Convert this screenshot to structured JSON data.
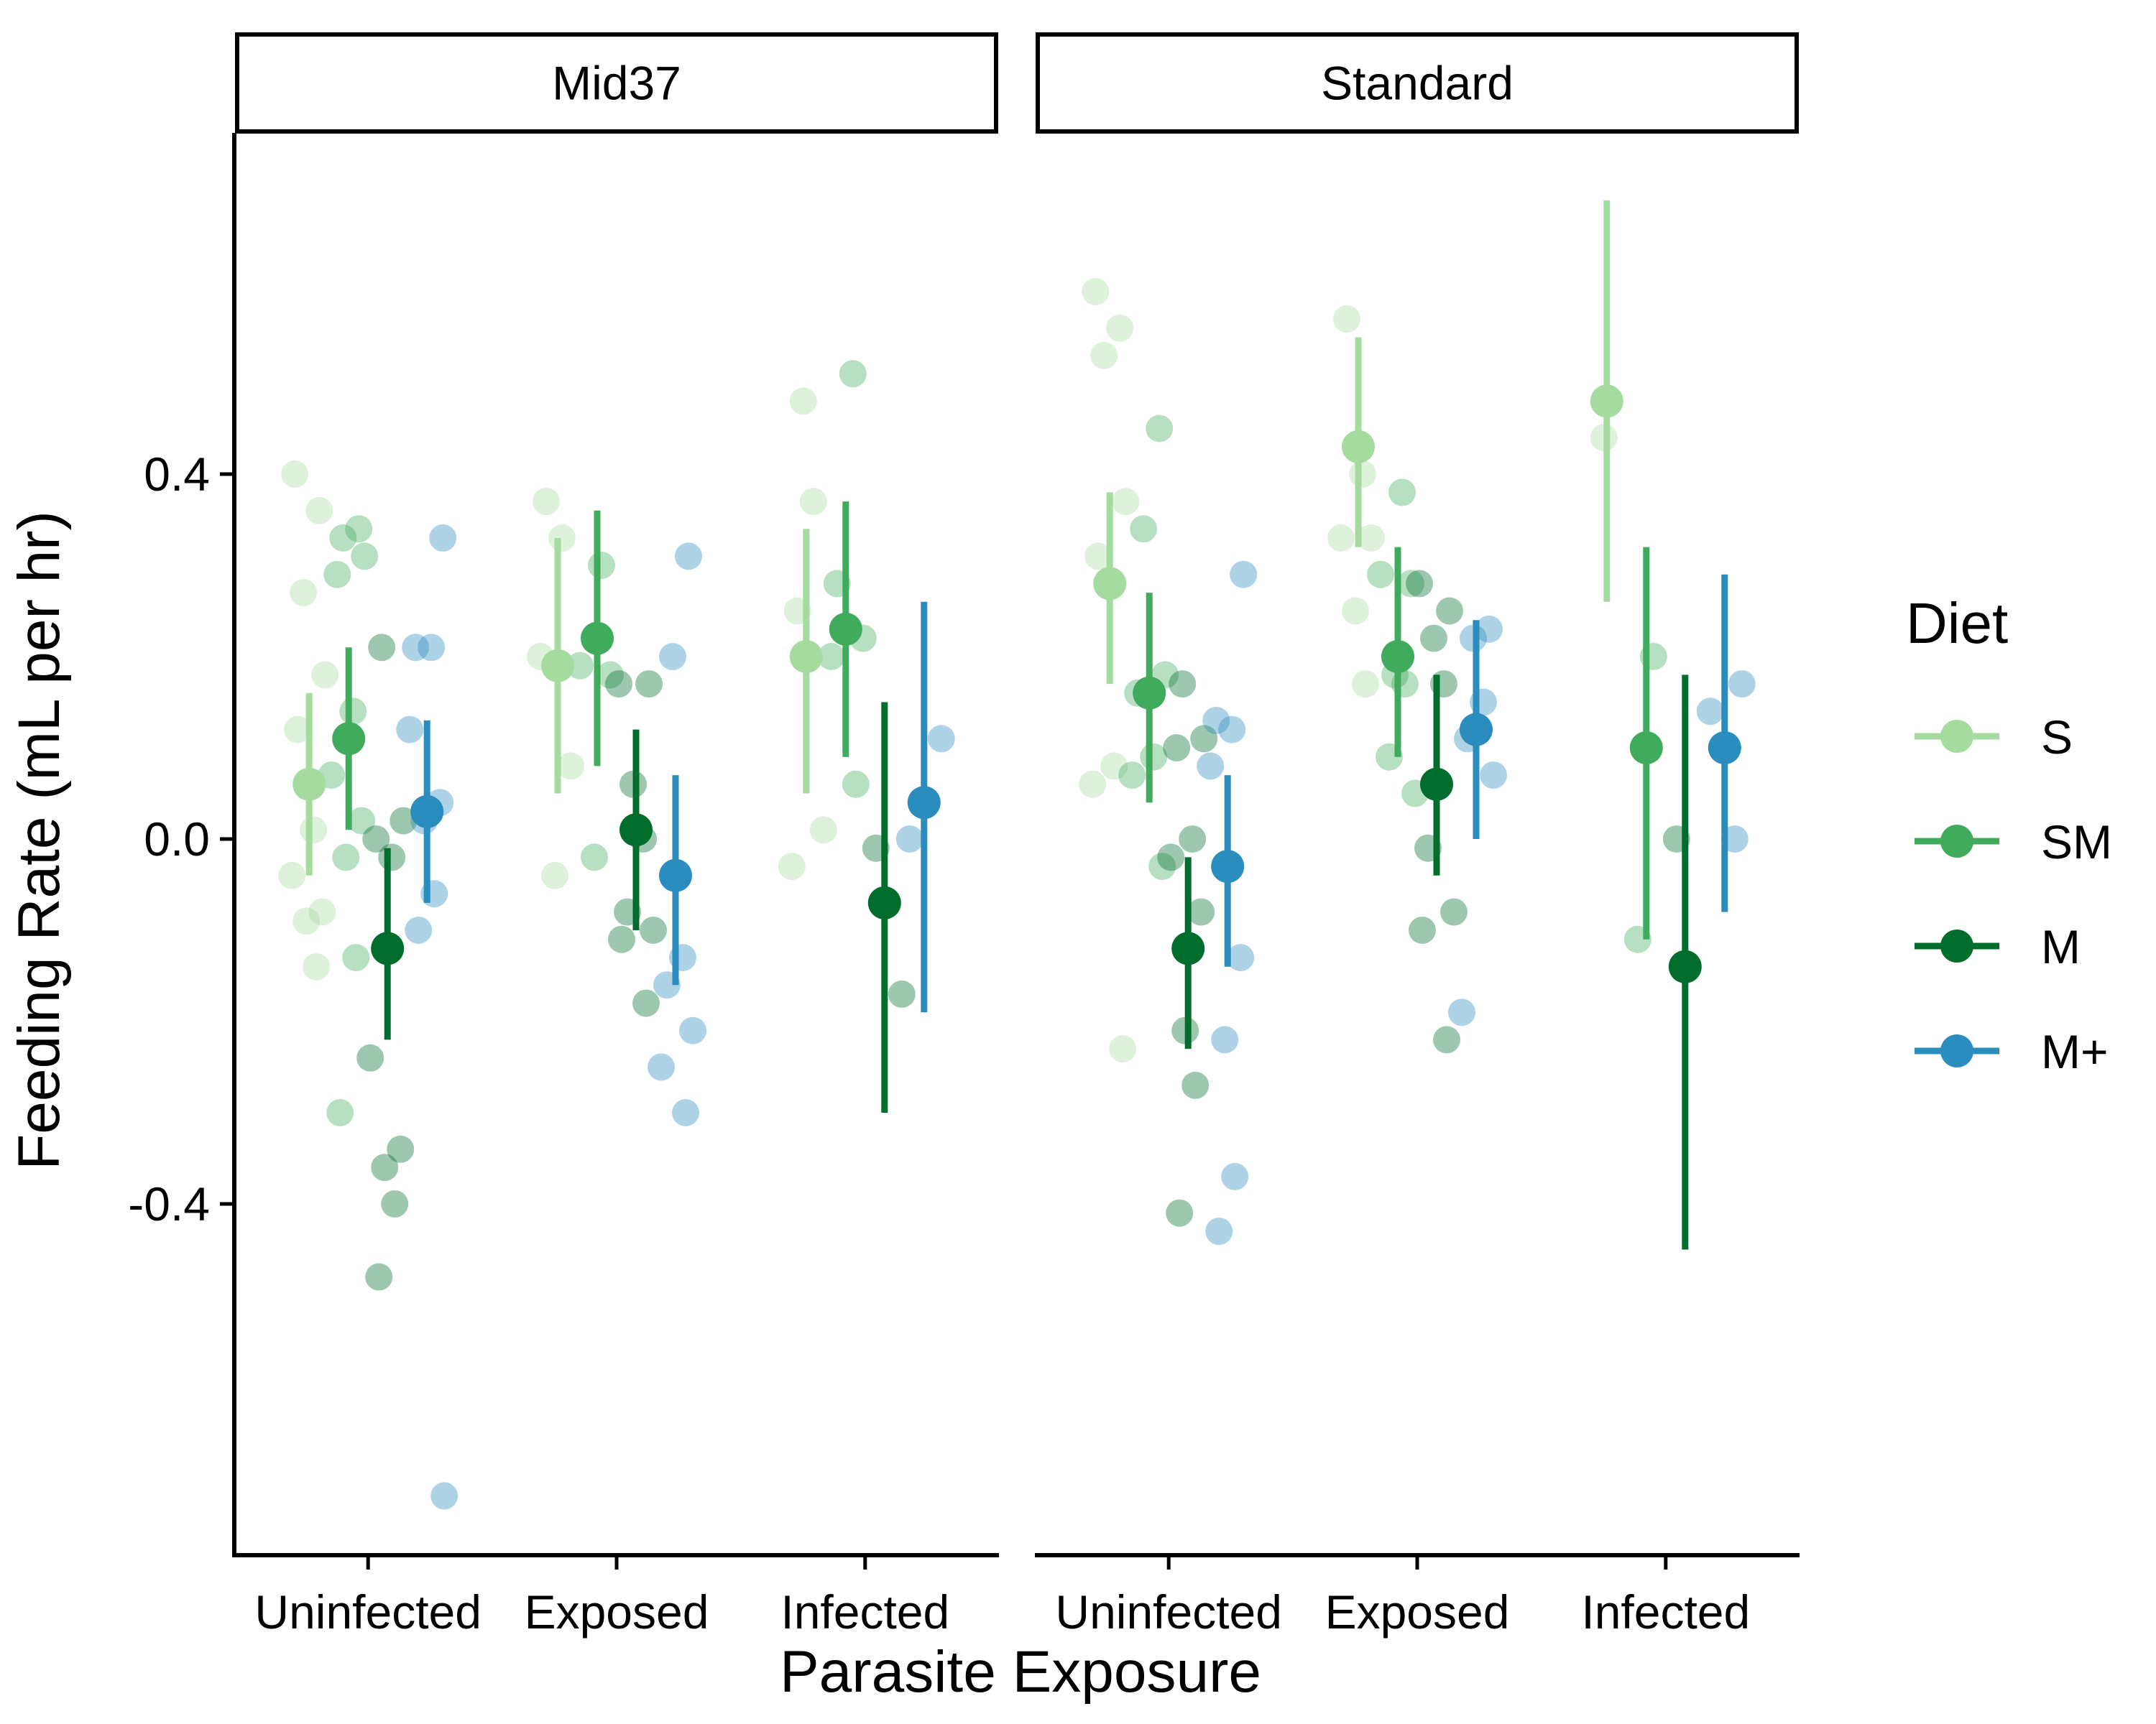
{
  "chart_data": {
    "type": "scatter",
    "xlabel": "Parasite Exposure",
    "ylabel": "Feeding Rate (mL per hr)",
    "ylim": [
      -0.78,
      0.8
    ],
    "yticks": [
      "0.4",
      "0.0",
      "-0.4"
    ],
    "ytick_values": [
      0.4,
      0.0,
      -0.4
    ],
    "categories": [
      "Uninfected",
      "Exposed",
      "Infected"
    ],
    "legend": {
      "title": "Diet",
      "position": "right"
    },
    "series": [
      {
        "name": "S",
        "color": "#a6dba0"
      },
      {
        "name": "SM",
        "color": "#41ab5d"
      },
      {
        "name": "M",
        "color": "#006d2c"
      },
      {
        "name": "M+",
        "color": "#2b8cbe"
      }
    ],
    "panels": [
      {
        "label": "Mid37",
        "groups": [
          {
            "exposure": "Uninfected",
            "diet": "S",
            "mean": 0.06,
            "lower": -0.04,
            "upper": 0.16,
            "points": [
              0.4,
              0.36,
              0.27,
              0.18,
              0.12,
              0.01,
              -0.04,
              -0.08,
              -0.09,
              -0.14
            ]
          },
          {
            "exposure": "Uninfected",
            "diet": "SM",
            "mean": 0.11,
            "lower": 0.01,
            "upper": 0.21,
            "points": [
              0.34,
              0.33,
              0.31,
              0.29,
              0.14,
              0.07,
              0.02,
              -0.02,
              -0.13,
              -0.3
            ]
          },
          {
            "exposure": "Uninfected",
            "diet": "M",
            "mean": -0.12,
            "lower": -0.22,
            "upper": -0.01,
            "points": [
              0.21,
              0.02,
              0.0,
              -0.02,
              -0.24,
              -0.34,
              -0.36,
              -0.4,
              -0.48
            ]
          },
          {
            "exposure": "Uninfected",
            "diet": "M+",
            "mean": 0.03,
            "lower": -0.07,
            "upper": 0.13,
            "points": [
              0.33,
              0.21,
              0.21,
              0.12,
              0.04,
              0.02,
              -0.06,
              -0.1,
              -0.72
            ]
          },
          {
            "exposure": "Exposed",
            "diet": "S",
            "mean": 0.19,
            "lower": 0.05,
            "upper": 0.33,
            "points": [
              0.37,
              0.33,
              0.2,
              0.08,
              -0.04
            ]
          },
          {
            "exposure": "Exposed",
            "diet": "SM",
            "mean": 0.22,
            "lower": 0.08,
            "upper": 0.36,
            "points": [
              0.3,
              0.19,
              0.18,
              -0.02
            ]
          },
          {
            "exposure": "Exposed",
            "diet": "M",
            "mean": 0.01,
            "lower": -0.1,
            "upper": 0.12,
            "points": [
              0.17,
              0.17,
              0.06,
              0.0,
              -0.08,
              -0.1,
              -0.11,
              -0.18
            ]
          },
          {
            "exposure": "Exposed",
            "diet": "M+",
            "mean": -0.04,
            "lower": -0.16,
            "upper": 0.07,
            "points": [
              0.31,
              0.2,
              -0.13,
              -0.16,
              -0.21,
              -0.25,
              -0.3
            ]
          },
          {
            "exposure": "Infected",
            "diet": "S",
            "mean": 0.2,
            "lower": 0.05,
            "upper": 0.34,
            "points": [
              0.48,
              0.37,
              0.25,
              0.01,
              -0.03
            ]
          },
          {
            "exposure": "Infected",
            "diet": "SM",
            "mean": 0.23,
            "lower": 0.09,
            "upper": 0.37,
            "points": [
              0.51,
              0.28,
              0.22,
              0.2,
              0.06
            ]
          },
          {
            "exposure": "Infected",
            "diet": "M",
            "mean": -0.07,
            "lower": -0.3,
            "upper": 0.15,
            "points": [
              -0.01,
              -0.17
            ]
          },
          {
            "exposure": "Infected",
            "diet": "M+",
            "mean": 0.04,
            "lower": -0.19,
            "upper": 0.26,
            "points": [
              0.11,
              0.0
            ]
          }
        ]
      },
      {
        "label": "Standard",
        "groups": [
          {
            "exposure": "Uninfected",
            "diet": "S",
            "mean": 0.28,
            "lower": 0.17,
            "upper": 0.38,
            "points": [
              0.6,
              0.56,
              0.53,
              0.37,
              0.31,
              0.08,
              0.06,
              -0.23
            ]
          },
          {
            "exposure": "Uninfected",
            "diet": "SM",
            "mean": 0.16,
            "lower": 0.04,
            "upper": 0.27,
            "points": [
              0.45,
              0.34,
              0.18,
              0.16,
              0.09,
              0.07,
              -0.03
            ]
          },
          {
            "exposure": "Uninfected",
            "diet": "M",
            "mean": -0.12,
            "lower": -0.23,
            "upper": -0.02,
            "points": [
              0.17,
              0.11,
              0.1,
              0.0,
              -0.02,
              -0.08,
              -0.21,
              -0.27,
              -0.41
            ]
          },
          {
            "exposure": "Uninfected",
            "diet": "M+",
            "mean": -0.03,
            "lower": -0.14,
            "upper": 0.07,
            "points": [
              0.29,
              0.13,
              0.12,
              0.08,
              -0.13,
              -0.22,
              -0.37,
              -0.43
            ]
          },
          {
            "exposure": "Exposed",
            "diet": "S",
            "mean": 0.43,
            "lower": 0.32,
            "upper": 0.55,
            "points": [
              0.57,
              0.4,
              0.33,
              0.33,
              0.25,
              0.17
            ]
          },
          {
            "exposure": "Exposed",
            "diet": "SM",
            "mean": 0.2,
            "lower": 0.09,
            "upper": 0.32,
            "points": [
              0.38,
              0.29,
              0.28,
              0.18,
              0.17,
              0.09,
              0.05
            ]
          },
          {
            "exposure": "Exposed",
            "diet": "M",
            "mean": 0.06,
            "lower": -0.04,
            "upper": 0.18,
            "points": [
              0.28,
              0.25,
              0.22,
              0.17,
              -0.01,
              -0.08,
              -0.1,
              -0.22
            ]
          },
          {
            "exposure": "Exposed",
            "diet": "M+",
            "mean": 0.12,
            "lower": 0.0,
            "upper": 0.24,
            "points": [
              0.23,
              0.22,
              0.15,
              0.11,
              0.07,
              -0.19
            ]
          },
          {
            "exposure": "Infected",
            "diet": "S",
            "mean": 0.48,
            "lower": 0.26,
            "upper": 0.7,
            "points": [
              0.44
            ]
          },
          {
            "exposure": "Infected",
            "diet": "SM",
            "mean": 0.1,
            "lower": -0.11,
            "upper": 0.32,
            "points": [
              0.2,
              -0.11
            ]
          },
          {
            "exposure": "Infected",
            "diet": "M",
            "mean": -0.14,
            "lower": -0.45,
            "upper": 0.18,
            "points": [
              0.0
            ]
          },
          {
            "exposure": "Infected",
            "diet": "M+",
            "mean": 0.1,
            "lower": -0.08,
            "upper": 0.29,
            "points": [
              0.17,
              0.14,
              0.0
            ]
          }
        ]
      }
    ]
  }
}
